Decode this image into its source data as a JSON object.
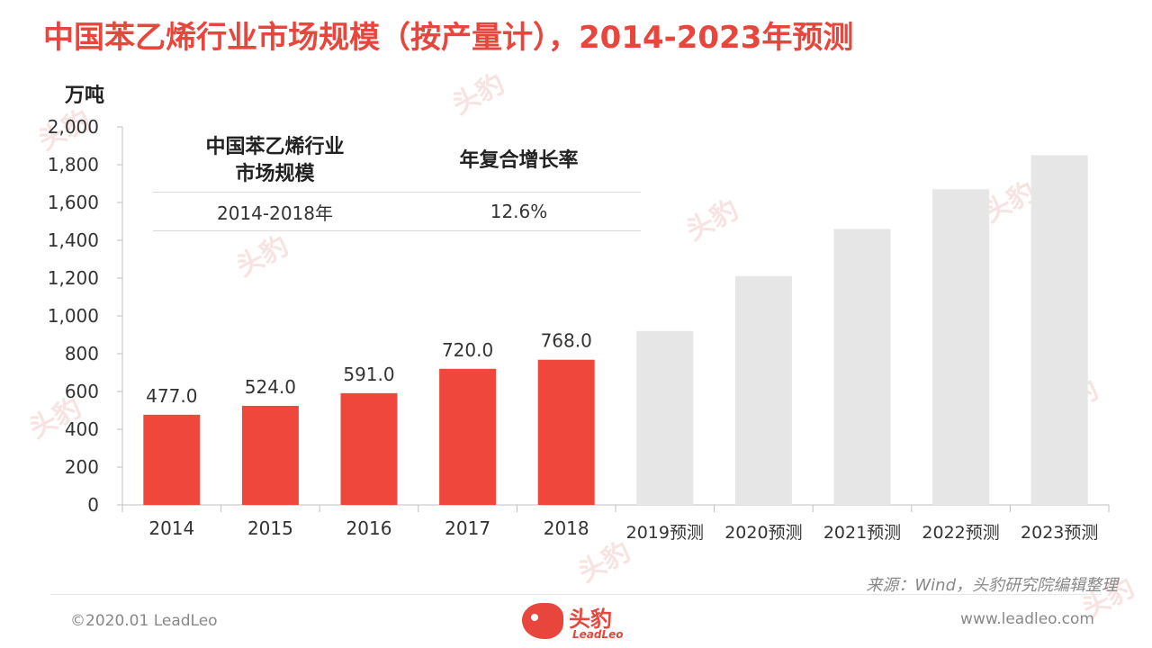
{
  "title": "中国苯乙烯行业市场规模（按产量计），2014-2023年预测",
  "unit_label": "万吨",
  "cagr_table": {
    "header_col1": "中国苯乙烯行业\n市场规模",
    "header_col2": "年复合增长率",
    "period": "2014-2018年",
    "rate": "12.6%"
  },
  "chart_data": {
    "type": "bar",
    "categories": [
      "2014",
      "2015",
      "2016",
      "2017",
      "2018",
      "2019预测",
      "2020预测",
      "2021预测",
      "2022预测",
      "2023预测"
    ],
    "values": [
      477.0,
      524.0,
      591.0,
      720.0,
      768.0,
      920,
      1210,
      1460,
      1670,
      1850
    ],
    "data_labels": [
      "477.0",
      "524.0",
      "591.0",
      "720.0",
      "768.0",
      "",
      "",
      "",
      "",
      ""
    ],
    "bar_colors": [
      "#f0473c",
      "#f0473c",
      "#f0473c",
      "#f0473c",
      "#f0473c",
      "#e6e6e6",
      "#e6e6e6",
      "#e6e6e6",
      "#e6e6e6",
      "#e6e6e6"
    ],
    "ylim": [
      0,
      2000
    ],
    "yticks": [
      0,
      200,
      400,
      600,
      800,
      1000,
      1200,
      1400,
      1600,
      1800,
      2000
    ],
    "ytick_labels": [
      "0",
      "200",
      "400",
      "600",
      "800",
      "1,000",
      "1,200",
      "1,400",
      "1,600",
      "1,800",
      "2,000"
    ],
    "ylabel": "万吨",
    "xlabel": "",
    "grid": false
  },
  "source": "来源：Wind，头豹研究院编辑整理",
  "footer": {
    "copyright": "©2020.01 LeadLeo",
    "website": "www.leadleo.com",
    "logo_cn": "头豹",
    "logo_en": "LeadLeo"
  },
  "watermark_text": "头豹"
}
